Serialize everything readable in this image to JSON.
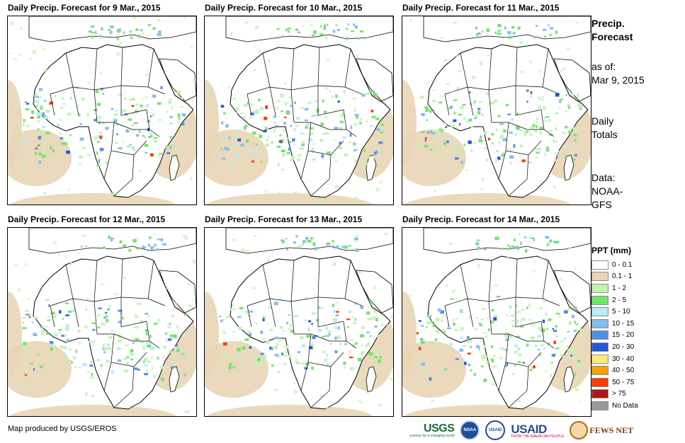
{
  "panels": [
    {
      "title": "Daily Precip. Forecast for 9 Mar., 2015"
    },
    {
      "title": "Daily Precip. Forecast for 10 Mar., 2015"
    },
    {
      "title": "Daily Precip. Forecast for 11 Mar., 2015"
    },
    {
      "title": "Daily Precip. Forecast for 12 Mar., 2015"
    },
    {
      "title": "Daily Precip. Forecast for 13 Mar., 2015"
    },
    {
      "title": "Daily Precip. Forecast for 14 Mar., 2015"
    }
  ],
  "sidebar": {
    "title_line1": "Precip.",
    "title_line2": "Forecast",
    "as_of_label": "as of:",
    "as_of_date": "Mar 9, 2015",
    "totals_line1": "Daily",
    "totals_line2": "Totals",
    "data_line1": "Data:",
    "data_line2": "NOAA-",
    "data_line3": "GFS"
  },
  "legend": {
    "title": "PPT (mm)",
    "items": [
      {
        "label": "0 - 0.1",
        "color": "#ffffff"
      },
      {
        "label": "0.1 - 1",
        "color": "#e8d5b5"
      },
      {
        "label": "1 - 2",
        "color": "#bff5b0"
      },
      {
        "label": "2 - 5",
        "color": "#6fe66a"
      },
      {
        "label": "5 - 10",
        "color": "#b9ecf7"
      },
      {
        "label": "10 - 15",
        "color": "#84bdf0"
      },
      {
        "label": "15 - 20",
        "color": "#4f8ee8"
      },
      {
        "label": "20 - 30",
        "color": "#2058d8"
      },
      {
        "label": "30 - 40",
        "color": "#ffe97a"
      },
      {
        "label": "40 - 50",
        "color": "#f5a300"
      },
      {
        "label": "50 - 75",
        "color": "#ff3a00"
      },
      {
        "label": "> 75",
        "color": "#b01515"
      },
      {
        "label": "No Data",
        "color": "#9a9a9a"
      }
    ]
  },
  "footer": {
    "note": "Map produced by USGS/EROS"
  },
  "logos": {
    "usgs": "USGS",
    "usgs_tag": "science for a changing world",
    "noaa": "NOAA",
    "usaid_seal": "USAID",
    "usaid": "USAID",
    "usaid_tag": "FROM THE AMERICAN PEOPLE",
    "fews": "FEWS NET"
  }
}
